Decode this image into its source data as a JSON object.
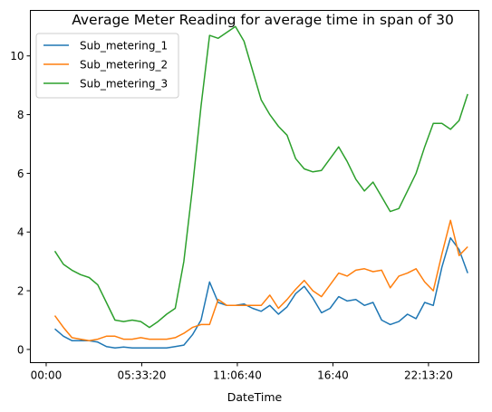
{
  "chart_data": {
    "type": "line",
    "title": "Average Meter Reading for average time in span of 30",
    "xlabel": "DateTime",
    "ylabel": "",
    "x_unit": "time of day (hours)",
    "xlim": [
      -0.92,
      25.15
    ],
    "ylim": [
      -0.45,
      11.55
    ],
    "x_ticks": [
      {
        "value": 0.0,
        "label": "00:00"
      },
      {
        "value": 5.5556,
        "label": "05:33:20"
      },
      {
        "value": 11.1111,
        "label": "11:06:40"
      },
      {
        "value": 16.6667,
        "label": "16:40"
      },
      {
        "value": 22.2222,
        "label": "22:13:20"
      }
    ],
    "y_ticks": [
      {
        "value": 0,
        "label": "0"
      },
      {
        "value": 2,
        "label": "2"
      },
      {
        "value": 4,
        "label": "4"
      },
      {
        "value": 6,
        "label": "6"
      },
      {
        "value": 8,
        "label": "8"
      },
      {
        "value": 10,
        "label": "10"
      }
    ],
    "grid": false,
    "legend_position": "top-left",
    "x": [
      0.5,
      1.0,
      1.5,
      2.0,
      2.5,
      3.0,
      3.5,
      4.0,
      4.5,
      5.0,
      5.5,
      6.0,
      6.5,
      7.0,
      7.5,
      8.0,
      8.5,
      9.0,
      9.5,
      10.0,
      10.5,
      11.0,
      11.5,
      12.0,
      12.5,
      13.0,
      13.5,
      14.0,
      14.5,
      15.0,
      15.5,
      16.0,
      16.5,
      17.0,
      17.5,
      18.0,
      18.5,
      19.0,
      19.5,
      20.0,
      20.5,
      21.0,
      21.5,
      22.0,
      22.5,
      23.0,
      23.5,
      24.0,
      24.5
    ],
    "series": [
      {
        "name": "Sub_metering_1",
        "color": "#1f77b4",
        "values": [
          0.7,
          0.45,
          0.3,
          0.3,
          0.3,
          0.25,
          0.1,
          0.05,
          0.08,
          0.05,
          0.05,
          0.05,
          0.05,
          0.05,
          0.1,
          0.15,
          0.5,
          1.0,
          2.3,
          1.6,
          1.5,
          1.5,
          1.55,
          1.4,
          1.3,
          1.5,
          1.2,
          1.45,
          1.9,
          2.15,
          1.75,
          1.25,
          1.4,
          1.8,
          1.65,
          1.7,
          1.5,
          1.6,
          1.0,
          0.85,
          0.95,
          1.2,
          1.05,
          1.6,
          1.5,
          2.8,
          3.8,
          3.4,
          2.6
        ]
      },
      {
        "name": "Sub_metering_2",
        "color": "#ff7f0e",
        "values": [
          1.15,
          0.75,
          0.4,
          0.35,
          0.3,
          0.35,
          0.45,
          0.45,
          0.35,
          0.35,
          0.4,
          0.35,
          0.35,
          0.35,
          0.4,
          0.55,
          0.75,
          0.85,
          0.85,
          1.7,
          1.5,
          1.5,
          1.5,
          1.5,
          1.5,
          1.85,
          1.4,
          1.7,
          2.05,
          2.35,
          2.0,
          1.8,
          2.2,
          2.6,
          2.5,
          2.7,
          2.75,
          2.65,
          2.7,
          2.1,
          2.5,
          2.6,
          2.75,
          2.3,
          2.0,
          3.25,
          4.4,
          3.2,
          3.5
        ]
      },
      {
        "name": "Sub_metering_3",
        "color": "#2ca02c",
        "values": [
          3.35,
          2.9,
          2.7,
          2.55,
          2.45,
          2.2,
          1.6,
          1.0,
          0.95,
          1.0,
          0.95,
          0.75,
          0.95,
          1.2,
          1.4,
          3.0,
          5.5,
          8.3,
          10.7,
          10.6,
          10.8,
          11.0,
          10.5,
          9.5,
          8.5,
          8.0,
          7.6,
          7.3,
          6.5,
          6.15,
          6.05,
          6.1,
          6.5,
          6.9,
          6.4,
          5.8,
          5.4,
          5.7,
          5.2,
          4.7,
          4.8,
          5.4,
          6.0,
          6.9,
          7.7,
          7.7,
          7.5,
          7.8,
          8.7
        ]
      }
    ]
  }
}
